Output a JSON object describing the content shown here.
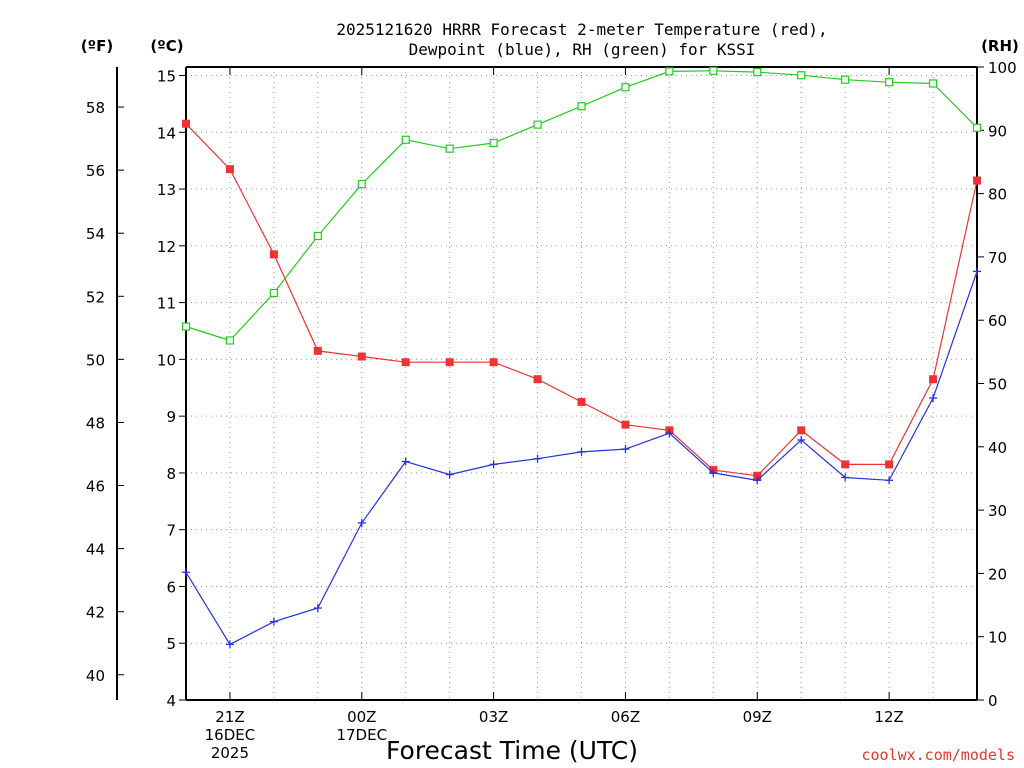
{
  "chart_data": {
    "type": "line",
    "title_line1": "2025121620 HRRR Forecast 2-meter Temperature (red),",
    "title_line2": "Dewpoint (blue), RH (green) for KSSI",
    "xlabel": "Forecast Time (UTC)",
    "left_f_label": "(ºF)",
    "left_c_label": "(ºC)",
    "right_label": "(RH)",
    "x_ticks": [
      {
        "x": 1,
        "lines": [
          "21Z",
          "16DEC",
          "2025"
        ]
      },
      {
        "x": 4,
        "lines": [
          "00Z",
          "17DEC"
        ]
      },
      {
        "x": 7,
        "lines": [
          "03Z"
        ]
      },
      {
        "x": 10,
        "lines": [
          "06Z"
        ]
      },
      {
        "x": 13,
        "lines": [
          "09Z"
        ]
      },
      {
        "x": 16,
        "lines": [
          "12Z"
        ]
      }
    ],
    "xlim": [
      0,
      18
    ],
    "ylim_c": [
      4,
      15.15
    ],
    "ylim_rh": [
      0,
      100
    ],
    "c_ticks": [
      "4",
      "5",
      "6",
      "7",
      "8",
      "9",
      "10",
      "11",
      "12",
      "13",
      "14",
      "15"
    ],
    "f_ticks": [
      "40",
      "42",
      "44",
      "46",
      "48",
      "50",
      "52",
      "54",
      "56",
      "58"
    ],
    "rh_ticks": [
      "0",
      "10",
      "20",
      "30",
      "40",
      "50",
      "60",
      "70",
      "80",
      "90",
      "100"
    ],
    "x": [
      0,
      1,
      2,
      3,
      4,
      5,
      6,
      7,
      8,
      9,
      10,
      11,
      12,
      13,
      14,
      15,
      16,
      17,
      18
    ],
    "series": [
      {
        "name": "Temperature",
        "axis": "C",
        "color": "#ee3333",
        "marker": "filled-square",
        "values": [
          14.15,
          13.35,
          11.85,
          10.15,
          10.05,
          9.95,
          9.95,
          9.95,
          9.65,
          9.25,
          8.85,
          8.75,
          8.05,
          7.95,
          8.75,
          8.15,
          8.15,
          9.65,
          13.15
        ]
      },
      {
        "name": "Dewpoint",
        "axis": "C",
        "color": "#2233dd",
        "marker": "plus",
        "values": [
          6.25,
          4.98,
          5.38,
          5.62,
          7.12,
          8.2,
          7.97,
          8.15,
          8.25,
          8.37,
          8.42,
          8.7,
          8.0,
          7.87,
          8.58,
          7.92,
          7.87,
          9.32,
          11.55
        ]
      },
      {
        "name": "RH",
        "axis": "RH",
        "color": "#22cc22",
        "marker": "open-square",
        "values": [
          59,
          56.8,
          64.3,
          73.3,
          81.5,
          88.5,
          87.1,
          88,
          90.9,
          93.8,
          96.8,
          99.3,
          99.4,
          99.2,
          98.7,
          98,
          97.6,
          97.4,
          90.4
        ]
      }
    ],
    "grid": true
  },
  "credit": "coolwx.com/models"
}
